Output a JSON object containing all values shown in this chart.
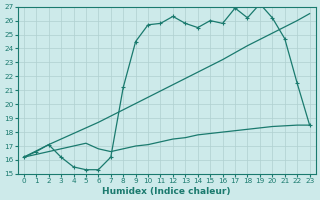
{
  "xlabel": "Humidex (Indice chaleur)",
  "bg_color": "#cdeaea",
  "line_color": "#1a7a6e",
  "grid_color": "#b0d0d0",
  "xlim": [
    -0.5,
    23.5
  ],
  "ylim": [
    15,
    27
  ],
  "xticks": [
    0,
    1,
    2,
    3,
    4,
    5,
    6,
    7,
    8,
    9,
    10,
    11,
    12,
    13,
    14,
    15,
    16,
    17,
    18,
    19,
    20,
    21,
    22,
    23
  ],
  "yticks": [
    15,
    16,
    17,
    18,
    19,
    20,
    21,
    22,
    23,
    24,
    25,
    26,
    27
  ],
  "line1_x": [
    0,
    1,
    2,
    3,
    4,
    5,
    6,
    7,
    8,
    9,
    10,
    11,
    12,
    13,
    14,
    15,
    16,
    17,
    18,
    19,
    20,
    21,
    22,
    23
  ],
  "line1_y": [
    16.2,
    16.6,
    17.1,
    16.2,
    15.5,
    15.3,
    15.3,
    16.2,
    21.2,
    24.5,
    25.7,
    25.8,
    26.3,
    25.8,
    25.5,
    26.0,
    25.8,
    26.9,
    26.2,
    27.2,
    26.2,
    24.7,
    21.5,
    18.5
  ],
  "line2_x": [
    0,
    2,
    4,
    6,
    8,
    10,
    12,
    14,
    16,
    18,
    20,
    22,
    23
  ],
  "line2_y": [
    16.2,
    17.1,
    17.9,
    18.7,
    19.6,
    20.5,
    21.4,
    22.3,
    23.2,
    24.2,
    25.1,
    26.0,
    26.5
  ],
  "line3_x": [
    0,
    1,
    2,
    3,
    4,
    5,
    6,
    7,
    8,
    9,
    10,
    11,
    12,
    13,
    14,
    15,
    16,
    17,
    18,
    19,
    20,
    21,
    22,
    23
  ],
  "line3_y": [
    16.2,
    16.4,
    16.6,
    16.8,
    17.0,
    17.2,
    16.8,
    16.6,
    16.8,
    17.0,
    17.1,
    17.3,
    17.5,
    17.6,
    17.8,
    17.9,
    18.0,
    18.1,
    18.2,
    18.3,
    18.4,
    18.45,
    18.5,
    18.5
  ]
}
